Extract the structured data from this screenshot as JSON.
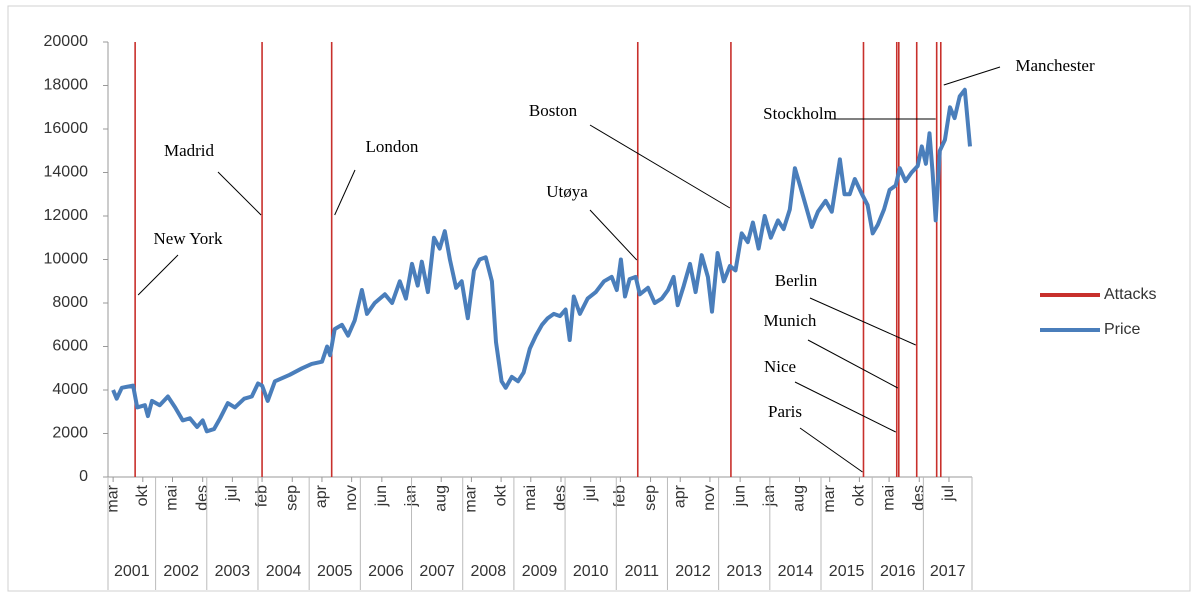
{
  "chart_data": {
    "type": "line",
    "series": [
      {
        "name": "Attacks",
        "color": "#c8302c",
        "type": "vline",
        "x": [
          2001.6,
          2004.08,
          2005.44,
          2011.42,
          2013.24,
          2015.83,
          2016.48,
          2016.52,
          2016.87,
          2017.26,
          2017.34
        ],
        "labels": [
          "New York",
          "Madrid",
          "London",
          "Utøya",
          "Boston",
          "Paris",
          "Nice",
          "Munich",
          "Berlin",
          "Stockholm",
          "Manchester"
        ]
      },
      {
        "name": "Price",
        "color": "#4a7ebb",
        "type": "line",
        "x": [
          2001.17,
          2001.24,
          2001.34,
          2001.56,
          2001.64,
          2001.79,
          2001.85,
          2001.93,
          2002.08,
          2002.24,
          2002.38,
          2002.53,
          2002.67,
          2002.81,
          2002.92,
          2003.0,
          2003.14,
          2003.26,
          2003.41,
          2003.55,
          2003.73,
          2003.88,
          2004.0,
          2004.08,
          2004.19,
          2004.33,
          2004.62,
          2004.86,
          2005.05,
          2005.25,
          2005.35,
          2005.41,
          2005.5,
          2005.64,
          2005.76,
          2005.89,
          2006.03,
          2006.13,
          2006.28,
          2006.48,
          2006.62,
          2006.77,
          2006.89,
          2007.01,
          2007.12,
          2007.2,
          2007.32,
          2007.44,
          2007.55,
          2007.65,
          2007.75,
          2007.87,
          2007.98,
          2008.1,
          2008.22,
          2008.33,
          2008.45,
          2008.57,
          2008.65,
          2008.76,
          2008.84,
          2008.96,
          2009.08,
          2009.19,
          2009.31,
          2009.43,
          2009.55,
          2009.66,
          2009.78,
          2009.9,
          2010.01,
          2010.09,
          2010.17,
          2010.29,
          2010.44,
          2010.6,
          2010.76,
          2010.91,
          2011.01,
          2011.09,
          2011.17,
          2011.26,
          2011.38,
          2011.46,
          2011.62,
          2011.75,
          2011.89,
          2012.01,
          2012.12,
          2012.2,
          2012.32,
          2012.44,
          2012.55,
          2012.67,
          2012.79,
          2012.87,
          2012.98,
          2013.1,
          2013.22,
          2013.33,
          2013.45,
          2013.57,
          2013.67,
          2013.78,
          2013.9,
          2014.02,
          2014.16,
          2014.27,
          2014.39,
          2014.49,
          2014.59,
          2014.7,
          2014.82,
          2014.94,
          2015.09,
          2015.21,
          2015.37,
          2015.46,
          2015.56,
          2015.66,
          2015.8,
          2015.91,
          2016.01,
          2016.11,
          2016.23,
          2016.34,
          2016.46,
          2016.54,
          2016.65,
          2016.77,
          2016.89,
          2016.97,
          2017.05,
          2017.12,
          2017.18,
          2017.24,
          2017.32,
          2017.42,
          2017.52,
          2017.61,
          2017.71,
          2017.81,
          2017.91
        ],
        "values": [
          4000,
          3600,
          4100,
          4200,
          3200,
          3300,
          2800,
          3500,
          3300,
          3700,
          3200,
          2600,
          2700,
          2300,
          2600,
          2100,
          2200,
          2700,
          3400,
          3200,
          3600,
          3700,
          4300,
          4200,
          3500,
          4400,
          4700,
          5000,
          5200,
          5300,
          6000,
          5600,
          6800,
          7000,
          6500,
          7200,
          8600,
          7500,
          8000,
          8400,
          8000,
          9000,
          8200,
          9800,
          8800,
          9900,
          8500,
          11000,
          10500,
          11300,
          10000,
          8700,
          9000,
          7300,
          9500,
          10000,
          10100,
          9000,
          6200,
          4400,
          4100,
          4600,
          4400,
          4800,
          5900,
          6500,
          7000,
          7300,
          7500,
          7400,
          7700,
          6300,
          8300,
          7500,
          8200,
          8500,
          9000,
          9200,
          8600,
          10000,
          8300,
          9100,
          9200,
          8400,
          8700,
          8000,
          8200,
          8600,
          9200,
          7900,
          8800,
          9800,
          8500,
          10200,
          9200,
          7600,
          10300,
          9000,
          9700,
          9500,
          11200,
          10800,
          11700,
          10500,
          12000,
          11000,
          11800,
          11400,
          12300,
          14200,
          13400,
          12500,
          11500,
          12200,
          12700,
          12200,
          14600,
          13000,
          13000,
          13700,
          13000,
          12500,
          11200,
          11600,
          12300,
          13200,
          13400,
          14200,
          13600,
          14000,
          14300,
          15200,
          14400,
          15800,
          14000,
          11800,
          15000,
          15500,
          17000,
          16500,
          17500,
          17800,
          15200
        ]
      }
    ],
    "xlim": [
      2001.07,
      2017.95
    ],
    "xticks": [
      {
        "value": 2001.17,
        "label": "mar"
      },
      {
        "value": 2001.75,
        "label": "okt"
      },
      {
        "value": 2002.33,
        "label": "mai"
      },
      {
        "value": 2002.92,
        "label": "des"
      },
      {
        "value": 2003.5,
        "label": "jul"
      },
      {
        "value": 2004.08,
        "label": "feb"
      },
      {
        "value": 2004.67,
        "label": "sep"
      },
      {
        "value": 2005.25,
        "label": "apr"
      },
      {
        "value": 2005.83,
        "label": "nov"
      },
      {
        "value": 2006.42,
        "label": "jun"
      },
      {
        "value": 2007.0,
        "label": "jan"
      },
      {
        "value": 2007.58,
        "label": "aug"
      },
      {
        "value": 2008.17,
        "label": "mar"
      },
      {
        "value": 2008.75,
        "label": "okt"
      },
      {
        "value": 2009.33,
        "label": "mai"
      },
      {
        "value": 2009.92,
        "label": "des"
      },
      {
        "value": 2010.5,
        "label": "jul"
      },
      {
        "value": 2011.08,
        "label": "feb"
      },
      {
        "value": 2011.67,
        "label": "sep"
      },
      {
        "value": 2012.25,
        "label": "apr"
      },
      {
        "value": 2012.83,
        "label": "nov"
      },
      {
        "value": 2013.42,
        "label": "jun"
      },
      {
        "value": 2014.0,
        "label": "jan"
      },
      {
        "value": 2014.58,
        "label": "aug"
      },
      {
        "value": 2015.17,
        "label": "mar"
      },
      {
        "value": 2015.75,
        "label": "okt"
      },
      {
        "value": 2016.33,
        "label": "mai"
      },
      {
        "value": 2016.92,
        "label": "des"
      },
      {
        "value": 2017.5,
        "label": "jul"
      }
    ],
    "year_ticks": [
      2001,
      2002,
      2003,
      2004,
      2005,
      2006,
      2007,
      2008,
      2009,
      2010,
      2011,
      2012,
      2013,
      2014,
      2015,
      2016,
      2017
    ],
    "ylim": [
      0,
      20000
    ],
    "yticks": [
      0,
      2000,
      4000,
      6000,
      8000,
      10000,
      12000,
      14000,
      16000,
      18000,
      20000
    ],
    "grid": false
  }
}
